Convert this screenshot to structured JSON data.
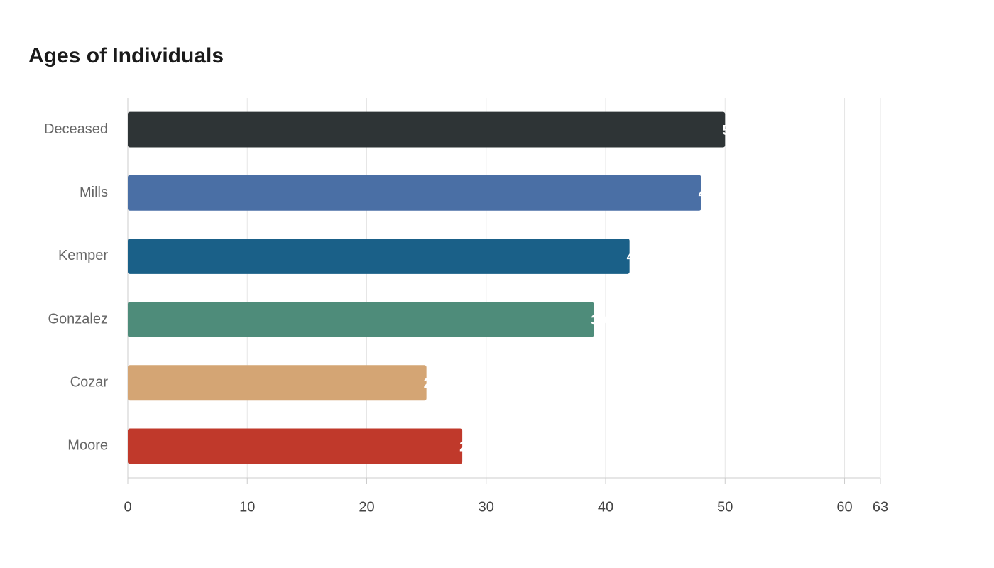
{
  "chart_data": {
    "type": "bar",
    "orientation": "horizontal",
    "title": "Ages of Individuals",
    "categories": [
      "Deceased",
      "Mills",
      "Kemper",
      "Gonzalez",
      "Cozar",
      "Moore"
    ],
    "values": [
      50,
      48,
      42,
      39,
      25,
      28
    ],
    "colors": [
      "#2e3436",
      "#4a6fa5",
      "#1a6088",
      "#4e8c7a",
      "#d4a574",
      "#c0392b"
    ],
    "xlim": [
      0,
      63
    ],
    "xticks": [
      0,
      10,
      20,
      30,
      40,
      50,
      60,
      63
    ],
    "grid": true
  }
}
